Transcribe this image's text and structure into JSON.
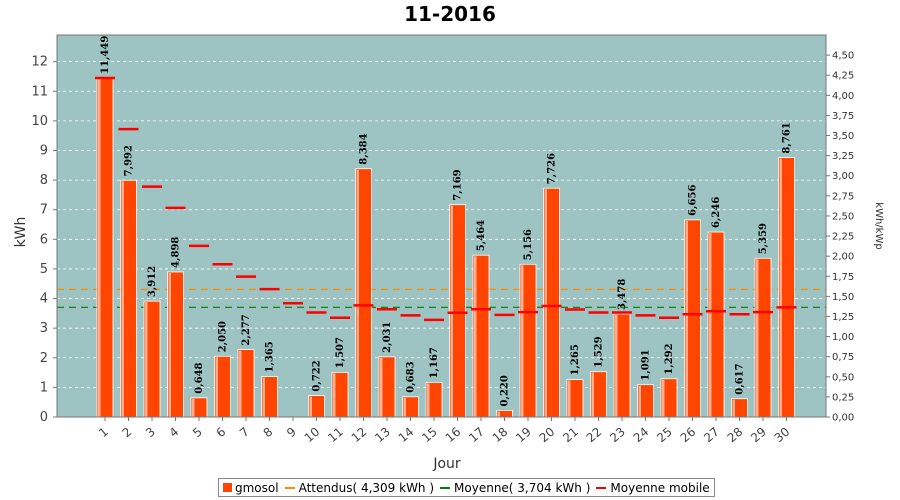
{
  "chart_data": {
    "type": "bar",
    "title": "11-2016",
    "xlabel": "Jour",
    "ylabel": "kWh",
    "y2label": "kWh/kWp",
    "ylim": [
      0,
      12.9
    ],
    "y2lim": [
      0,
      4.75
    ],
    "yticks": [
      "0",
      "1",
      "2",
      "3",
      "4",
      "5",
      "6",
      "7",
      "8",
      "9",
      "10",
      "11",
      "12"
    ],
    "y2ticks": [
      "0,00",
      "0,25",
      "0,50",
      "0,75",
      "1,00",
      "1,25",
      "1,50",
      "1,75",
      "2,00",
      "2,25",
      "2,50",
      "2,75",
      "3,00",
      "3,25",
      "3,50",
      "3,75",
      "4,00",
      "4,25",
      "4,50"
    ],
    "categories": [
      "1",
      "2",
      "3",
      "4",
      "5",
      "6",
      "7",
      "8",
      "9",
      "10",
      "11",
      "12",
      "13",
      "14",
      "15",
      "16",
      "17",
      "18",
      "19",
      "20",
      "21",
      "22",
      "23",
      "24",
      "25",
      "26",
      "27",
      "28",
      "29",
      "30"
    ],
    "series": [
      {
        "name": "gmosol",
        "type": "bar",
        "color": "#ff4500",
        "values": [
          11.449,
          7.992,
          3.912,
          4.898,
          0.648,
          2.05,
          2.277,
          1.365,
          null,
          0.722,
          1.507,
          8.384,
          2.031,
          0.683,
          1.167,
          7.169,
          5.464,
          0.22,
          5.156,
          7.726,
          1.265,
          1.529,
          3.478,
          1.091,
          1.292,
          6.656,
          6.246,
          0.617,
          5.359,
          8.761
        ],
        "labels": [
          "11,449",
          "7,992",
          "3,912",
          "4,898",
          "0,648",
          "2,050",
          "2,277",
          "1,365",
          "",
          "0,722",
          "1,507",
          "8,384",
          "2,031",
          "0,683",
          "1,167",
          "7,169",
          "5,464",
          "0,220",
          "5,156",
          "7,726",
          "1,265",
          "1,529",
          "3,478",
          "1,091",
          "1,292",
          "6,656",
          "6,246",
          "0,617",
          "5,359",
          "8,761"
        ]
      },
      {
        "name": "Attendus( 4,309 kWh )",
        "type": "hline",
        "color": "#ff8c00",
        "value": 4.309
      },
      {
        "name": "Moyenne( 3,704 kWh )",
        "type": "hline",
        "color": "#008000",
        "value": 3.704
      },
      {
        "name": "Moyenne mobile",
        "type": "marker",
        "color": "#ff0000",
        "values": [
          11.45,
          9.72,
          7.78,
          7.06,
          5.78,
          5.16,
          4.74,
          4.32,
          3.84,
          3.53,
          3.35,
          3.77,
          3.64,
          3.43,
          3.28,
          3.52,
          3.64,
          3.45,
          3.54,
          3.75,
          3.63,
          3.53,
          3.53,
          3.43,
          3.35,
          3.47,
          3.57,
          3.47,
          3.54,
          3.7
        ]
      }
    ],
    "legend_position": "bottom",
    "grid": true
  }
}
